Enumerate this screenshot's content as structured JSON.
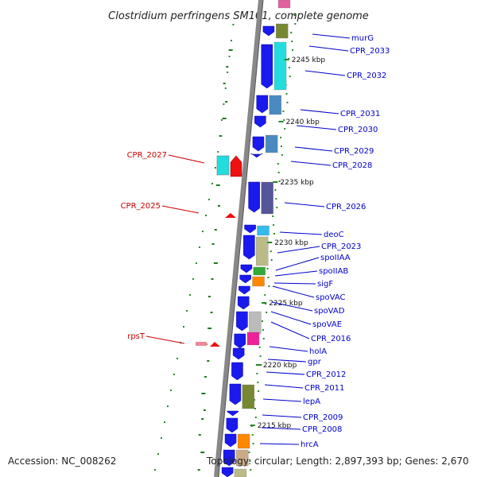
{
  "title": "Clostridium perfringens SM101, complete genome",
  "accession": "Accession: NC_008262",
  "topology": "Topology: circular; Length: 2,897,393 bp; Genes: 2,670",
  "colors": {
    "label_right": "#0000cc",
    "label_left": "#cc0000",
    "gene_main": "#1a1aee"
  },
  "scale_labels": [
    "2245 kbp",
    "2240 kbp",
    "2235 kbp",
    "2230 kbp",
    "2225 kbp",
    "2220 kbp",
    "2215 kbp"
  ],
  "genes_right": [
    "murG",
    "CPR_2033",
    "CPR_2032",
    "CPR_2031",
    "CPR_2030",
    "CPR_2029",
    "CPR_2028",
    "CPR_2026",
    "deoC",
    "CPR_2023",
    "spoIIAA",
    "spoIIAB",
    "sigF",
    "spoVAC",
    "spoVAD",
    "spoVAE",
    "CPR_2016",
    "holA",
    "gpr",
    "CPR_2012",
    "CPR_2011",
    "lepA",
    "CPR_2009",
    "CPR_2008",
    "hrcA"
  ],
  "genes_left": [
    "CPR_2027",
    "CPR_2025",
    "rpsT"
  ]
}
